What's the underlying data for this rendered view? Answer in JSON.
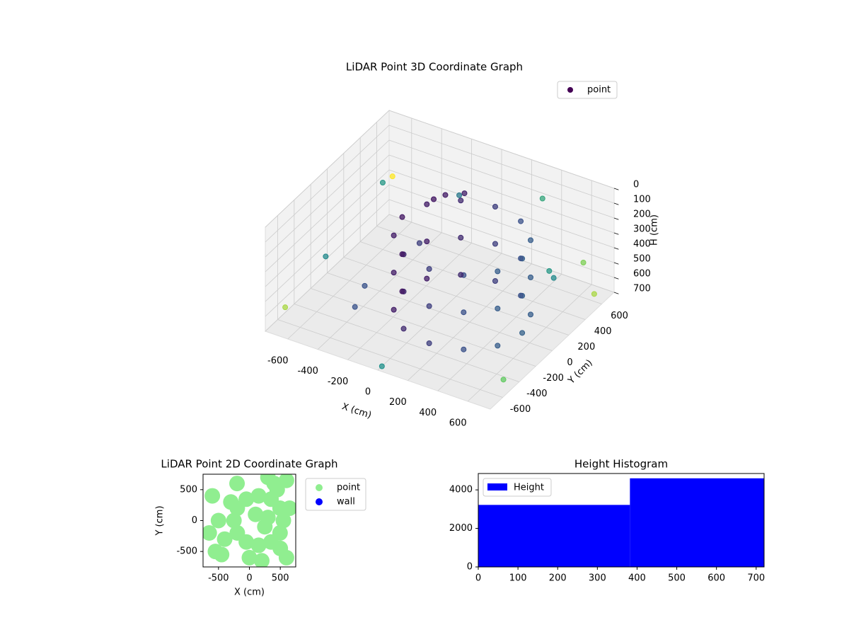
{
  "chart_data": [
    {
      "type": "scatter3d",
      "title": "LiDAR Point 3D Coordinate Graph",
      "x_label": "X (cm)",
      "y_label": "Y (cm)",
      "z_label": "H (cm)",
      "xlim": [
        -750,
        750
      ],
      "ylim": [
        -750,
        750
      ],
      "zlim": [
        700,
        0
      ],
      "xticks": [
        -600,
        -400,
        -200,
        0,
        200,
        400,
        600
      ],
      "yticks": [
        -600,
        -400,
        -200,
        0,
        200,
        400,
        600
      ],
      "zticks": [
        0,
        100,
        200,
        300,
        400,
        500,
        600,
        700
      ],
      "grid": true,
      "legend": "upper right",
      "cmap": "viridis",
      "series": [
        {
          "name": "point",
          "color": "#440154",
          "x": [
            550,
            496,
            350,
            150,
            -50,
            -196,
            -250,
            -196,
            -50,
            150,
            350,
            496,
            550,
            496,
            350,
            150,
            -50,
            -196,
            -250,
            -196,
            -50,
            150,
            350,
            496,
            550,
            496,
            350,
            150,
            -50,
            -196,
            -250,
            -196,
            -50,
            150,
            350,
            496,
            -100,
            0,
            -150,
            -700,
            -600,
            -400,
            -200,
            600,
            700,
            -500,
            300,
            -650,
            650,
            0,
            -300,
            400,
            -700,
            700
          ],
          "y": [
            0,
            200,
            346,
            400,
            346,
            200,
            0,
            -200,
            -346,
            -400,
            -346,
            -200,
            0,
            200,
            346,
            400,
            346,
            200,
            0,
            -200,
            -346,
            -400,
            -346,
            -200,
            0,
            200,
            346,
            400,
            346,
            200,
            0,
            -200,
            -346,
            -400,
            -346,
            -200,
            250,
            300,
            200,
            -600,
            400,
            -300,
            600,
            650,
            -500,
            0,
            700,
            -200,
            200,
            -700,
            300,
            600,
            700,
            600
          ],
          "z": [
            150,
            150,
            150,
            150,
            150,
            150,
            150,
            150,
            150,
            150,
            150,
            150,
            400,
            400,
            400,
            400,
            400,
            400,
            400,
            400,
            400,
            400,
            400,
            400,
            650,
            650,
            650,
            650,
            650,
            650,
            650,
            650,
            650,
            650,
            650,
            650,
            80,
            60,
            100,
            600,
            250,
            650,
            300,
            500,
            650,
            700,
            200,
            450,
            350,
            700,
            500,
            600,
            400,
            650
          ]
        }
      ]
    },
    {
      "type": "scatter",
      "title": "LiDAR Point 2D Coordinate Graph",
      "x_label": "X (cm)",
      "y_label": "Y (cm)",
      "xlim": [
        -750,
        750
      ],
      "ylim": [
        -750,
        750
      ],
      "xticks": [
        -500,
        0,
        500
      ],
      "yticks": [
        -500,
        0,
        500
      ],
      "legend": "outside right",
      "series": [
        {
          "name": "point",
          "color": "#90ee90",
          "x": [
            550,
            496,
            350,
            150,
            -50,
            -196,
            -250,
            -196,
            -50,
            150,
            350,
            496,
            -600,
            -400,
            -200,
            600,
            -500,
            300,
            -650,
            650,
            -300,
            400,
            100,
            250,
            450,
            0,
            200,
            -450,
            -550,
            600,
            300,
            500
          ],
          "y": [
            0,
            200,
            346,
            400,
            346,
            200,
            0,
            -200,
            -346,
            -400,
            -346,
            -200,
            400,
            -300,
            600,
            650,
            0,
            700,
            -200,
            200,
            300,
            600,
            100,
            -100,
            500,
            -600,
            -650,
            -550,
            -500,
            -600,
            50,
            -450
          ]
        },
        {
          "name": "wall",
          "color": "#0000ff",
          "x": [],
          "y": []
        }
      ]
    },
    {
      "type": "histogram",
      "title": "Height Histogram",
      "bins": [
        0,
        382,
        720
      ],
      "counts": [
        3220,
        4600
      ],
      "color": "#0000ff",
      "name": "Height",
      "xlim": [
        0,
        720
      ],
      "ylim": [
        0,
        4850
      ],
      "xticks": [
        0,
        100,
        200,
        300,
        400,
        500,
        600,
        700
      ],
      "yticks": [
        0,
        2000,
        4000
      ],
      "legend": "upper left"
    }
  ]
}
